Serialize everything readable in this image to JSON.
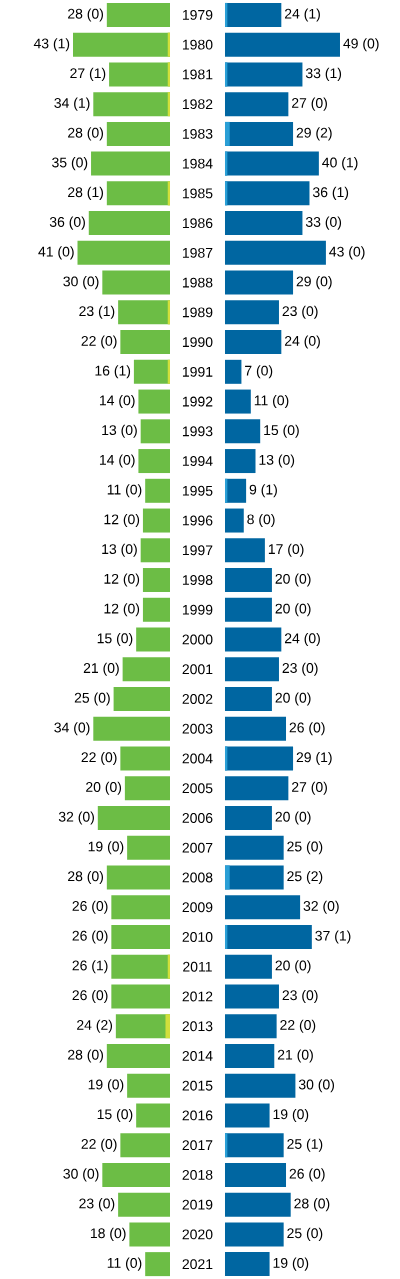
{
  "chart_data": [
    {
      "type": "bar",
      "orientation": "horizontal",
      "xlim": [
        43,
        0
      ],
      "tick_labels": "y",
      "categories": [
        "1979",
        "1980",
        "1981",
        "1982",
        "1983",
        "1984",
        "1985",
        "1986",
        "1987",
        "1988",
        "1989",
        "1990",
        "1991",
        "1992",
        "1993",
        "1994",
        "1995",
        "1996",
        "1997",
        "1998",
        "1999",
        "2000",
        "2001",
        "2002",
        "2003",
        "2004",
        "2005",
        "2006",
        "2007",
        "2008",
        "2009",
        "2010",
        "2011",
        "2012",
        "2013",
        "2014",
        "2015",
        "2016",
        "2017",
        "2018",
        "2019",
        "2020",
        "2021"
      ],
      "series": [
        {
          "color": "#6cbd45",
          "values": [
            28,
            43,
            27,
            34,
            28,
            35,
            28,
            36,
            41,
            30,
            23,
            22,
            16,
            14,
            13,
            14,
            11,
            12,
            13,
            12,
            12,
            15,
            21,
            25,
            34,
            22,
            20,
            32,
            19,
            28,
            26,
            26,
            26,
            26,
            24,
            28,
            19,
            15,
            22,
            30,
            23,
            18,
            11
          ],
          "value_labels": [
            "28 (0)",
            "43 (1)",
            "27 (1)",
            "34 (1)",
            "28 (0)",
            "35 (0)",
            "28 (1)",
            "36 (0)",
            "41 (0)",
            "30 (0)",
            "23 (1)",
            "22 (0)",
            "16 (1)",
            "14 (0)",
            "13 (0)",
            "14 (0)",
            "11 (0)",
            "12 (0)",
            "13 (0)",
            "12 (0)",
            "12 (0)",
            "15 (0)",
            "21 (0)",
            "25 (0)",
            "34 (0)",
            "22 (0)",
            "20 (0)",
            "32 (0)",
            "19 (0)",
            "28 (0)",
            "26 (0)",
            "26 (0)",
            "26 (1)",
            "26 (0)",
            "24 (2)",
            "28 (0)",
            "19 (0)",
            "15 (0)",
            "22 (0)",
            "30 (0)",
            "23 (0)",
            "18 (0)",
            "11 (0)"
          ]
        },
        {
          "color": "#d2df3c",
          "values": [
            0,
            1,
            1,
            1,
            0,
            0,
            1,
            0,
            0,
            0,
            1,
            0,
            1,
            0,
            0,
            0,
            0,
            0,
            0,
            0,
            0,
            0,
            0,
            0,
            0,
            0,
            0,
            0,
            0,
            0,
            0,
            0,
            1,
            0,
            2,
            0,
            0,
            0,
            0,
            0,
            0,
            0,
            0
          ]
        }
      ]
    },
    {
      "type": "bar",
      "orientation": "horizontal",
      "xlim": [
        0,
        49
      ],
      "tick_labels": false,
      "categories": [
        null,
        null,
        null,
        null,
        null,
        null,
        null,
        null,
        null,
        null,
        null,
        null,
        null,
        null,
        null,
        null,
        null,
        null,
        null,
        null,
        null,
        null,
        null,
        null,
        null,
        null,
        null,
        null,
        null,
        null,
        null,
        null,
        null,
        null,
        null,
        null,
        null,
        null,
        null,
        null,
        null,
        null,
        null
      ],
      "series": [
        {
          "color": "#0066a1",
          "values": [
            24,
            49,
            33,
            27,
            29,
            40,
            36,
            33,
            43,
            29,
            23,
            24,
            7,
            11,
            15,
            13,
            9,
            8,
            17,
            20,
            20,
            24,
            23,
            20,
            26,
            29,
            27,
            20,
            25,
            25,
            32,
            37,
            20,
            23,
            22,
            21,
            30,
            19,
            25,
            26,
            28,
            25,
            19
          ],
          "value_labels": [
            "24 (1)",
            "49 (0)",
            "33 (1)",
            "27 (0)",
            "29 (2)",
            "40 (1)",
            "36 (1)",
            "33 (0)",
            "43 (0)",
            "29 (0)",
            "23 (0)",
            "24 (0)",
            "7 (0)",
            "11 (0)",
            "15 (0)",
            "13 (0)",
            "9 (1)",
            "8 (0)",
            "17 (0)",
            "20 (0)",
            "20 (0)",
            "24 (0)",
            "23 (0)",
            "20 (0)",
            "26 (0)",
            "29 (1)",
            "27 (0)",
            "20 (0)",
            "25 (0)",
            "25 (2)",
            "32 (0)",
            "37 (1)",
            "20 (0)",
            "23 (0)",
            "22 (0)",
            "21 (0)",
            "30 (0)",
            "19 (0)",
            "25 (1)",
            "26 (0)",
            "28 (0)",
            "25 (0)",
            "19 (0)"
          ]
        },
        {
          "color": "#2a9fd6",
          "values": [
            1,
            0,
            1,
            0,
            2,
            1,
            1,
            0,
            0,
            0,
            0,
            0,
            0,
            0,
            0,
            0,
            1,
            0,
            0,
            0,
            0,
            0,
            0,
            0,
            0,
            1,
            0,
            0,
            0,
            2,
            0,
            1,
            0,
            0,
            0,
            0,
            0,
            0,
            1,
            0,
            0,
            0,
            0
          ]
        }
      ]
    }
  ]
}
